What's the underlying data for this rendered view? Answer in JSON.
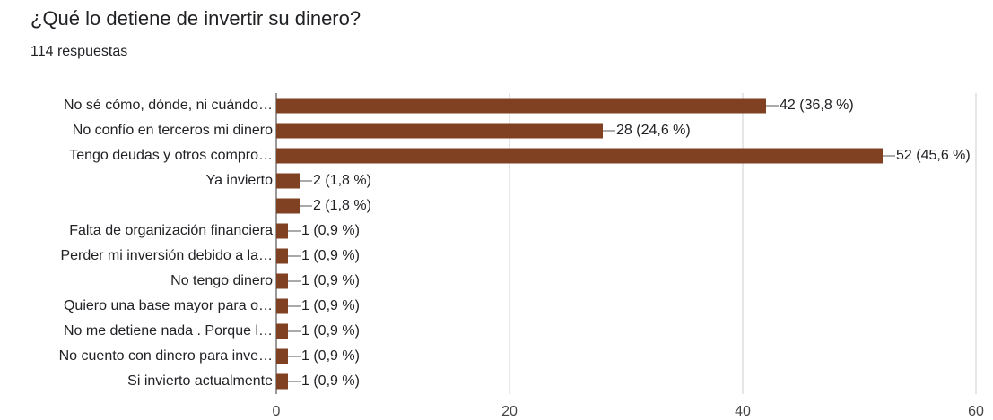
{
  "chart_data": {
    "type": "bar",
    "orientation": "horizontal",
    "title": "¿Qué lo detiene de invertir su dinero?",
    "subtitle": "114 respuestas",
    "categories": [
      "No sé cómo, dónde, ni cuándo…",
      "No confío en terceros mi dinero",
      "Tengo deudas y otros compro…",
      "Ya invierto",
      null,
      "Falta de organización financiera",
      "Perder mi inversión debido a la…",
      "No tengo dinero",
      "Quiero una base mayor para o…",
      "No me detiene nada . Porque l…",
      "No cuento con dinero para inve…",
      "Si invierto actualmente"
    ],
    "values": [
      42,
      28,
      52,
      2,
      2,
      1,
      1,
      1,
      1,
      1,
      1,
      1
    ],
    "value_labels": [
      "42 (36,8 %)",
      "28 (24,6 %)",
      "52 (45,6 %)",
      "2 (1,8 %)",
      "2 (1,8 %)",
      "1 (0,9 %)",
      "1 (0,9 %)",
      "1 (0,9 %)",
      "1 (0,9 %)",
      "1 (0,9 %)",
      "1 (0,9 %)",
      "1 (0,9 %)"
    ],
    "color": "#7f4122",
    "xlim": [
      0,
      60
    ],
    "xticks": [
      0,
      20,
      40,
      60
    ],
    "grid": true
  }
}
